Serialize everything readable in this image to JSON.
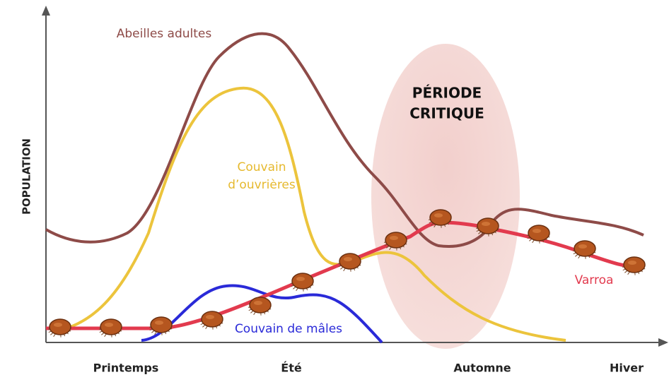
{
  "axes": {
    "y_label": "POPULATION",
    "x_labels": [
      "Printemps",
      "Été",
      "Automne",
      "Hiver"
    ]
  },
  "curves": [
    {
      "label": [
        "Abeilles adultes"
      ]
    },
    {
      "label": [
        "Couvain",
        "d’ouvrières"
      ]
    },
    {
      "label": [
        "Couvain de mâles"
      ]
    },
    {
      "label": [
        "Varroa"
      ]
    }
  ],
  "highlight": {
    "label": [
      "PÉRIODE",
      "CRITIQUE"
    ]
  }
}
